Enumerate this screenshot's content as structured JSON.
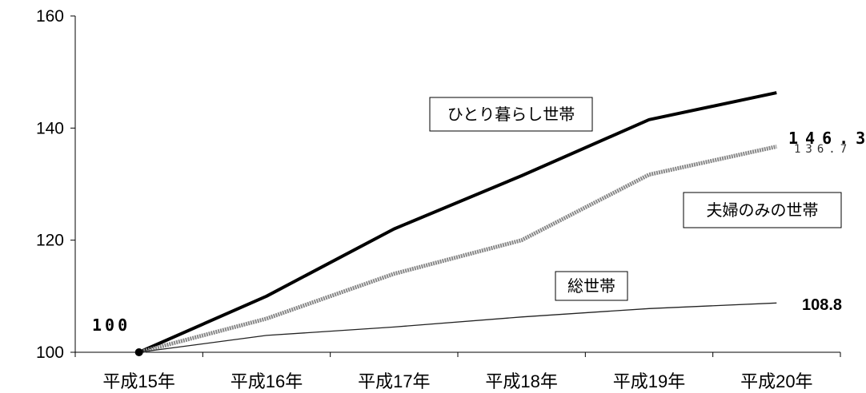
{
  "chart_data": {
    "type": "line",
    "title": "",
    "xlabel": "",
    "ylabel": "",
    "categories": [
      "平成15年",
      "平成16年",
      "平成17年",
      "平成18年",
      "平成19年",
      "平成20年"
    ],
    "ylim": [
      100,
      160
    ],
    "yticks": [
      "100",
      "120",
      "140",
      "160"
    ],
    "grid": false,
    "series": [
      {
        "name": "ひとり暮らし世帯",
        "values": [
          100,
          110,
          122,
          131.5,
          141.5,
          146.3
        ],
        "color": "#000000",
        "end_label": "146.3"
      },
      {
        "name": "夫婦のみの世帯",
        "values": [
          100,
          106,
          114,
          120,
          131.7,
          136.7
        ],
        "color": "#888888",
        "end_label": "136.7"
      },
      {
        "name": "総世帯",
        "values": [
          100,
          103,
          104.5,
          106.3,
          107.8,
          108.8
        ],
        "color": "#222222",
        "end_label": "108.8"
      }
    ],
    "start_label": "100"
  }
}
